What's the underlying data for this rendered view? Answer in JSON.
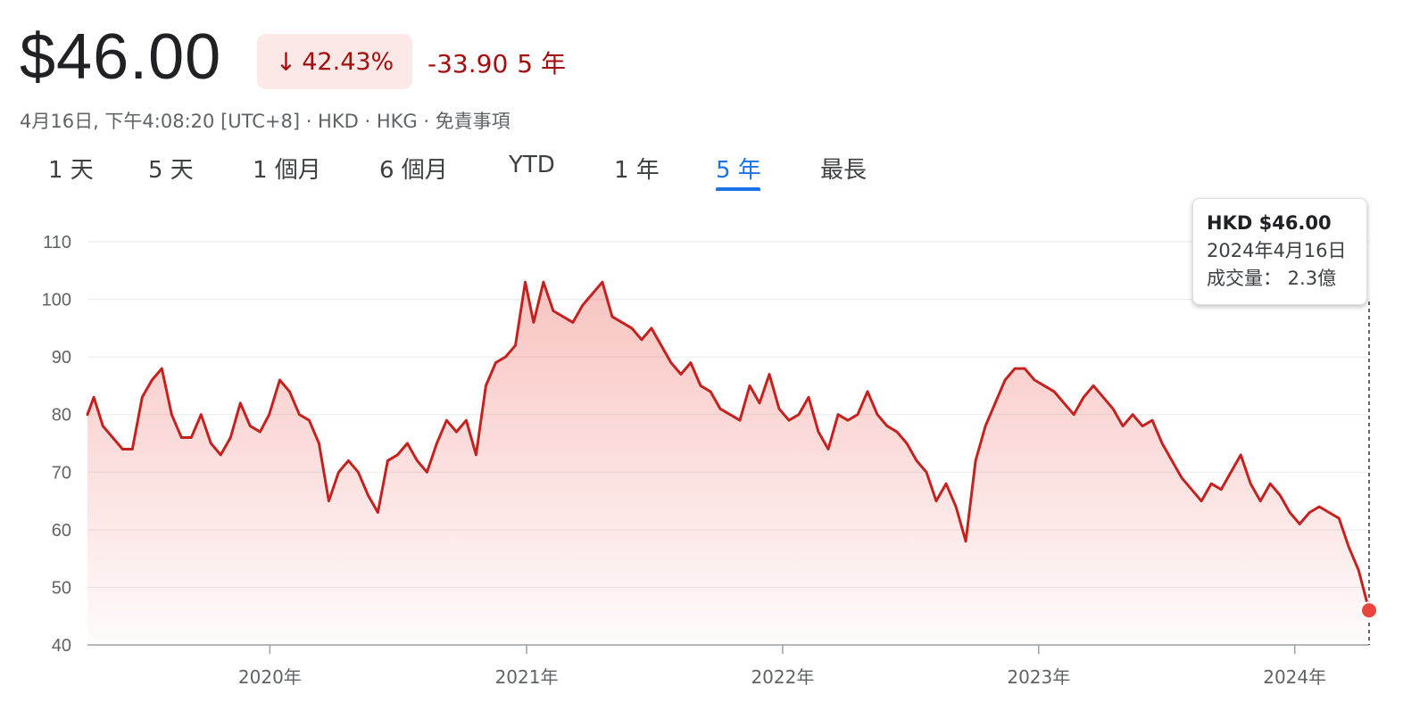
{
  "quote": {
    "price": "$46.00",
    "change_percent": "42.43%",
    "change_abs": "-33.90",
    "period_label": "5 年",
    "meta": "4月16日, 下午4:08:20 [UTC+8] · HKD · HKG · 免責事項"
  },
  "tabs": [
    {
      "label": "1 天"
    },
    {
      "label": "5 天"
    },
    {
      "label": "1 個月"
    },
    {
      "label": "6 個月"
    },
    {
      "label": "YTD"
    },
    {
      "label": "1 年"
    },
    {
      "label": "5 年",
      "active": true
    },
    {
      "label": "最長"
    }
  ],
  "tooltip": {
    "price": "HKD $46.00",
    "date": "2024年4月16日",
    "volume": "成交量： 2.3億"
  },
  "colors": {
    "line": "#c5221f",
    "negative_text": "#a50e0e",
    "negative_bg": "#fce8e6",
    "active_tab": "#1a73e8"
  },
  "icons": {
    "change_arrow": "arrow-down-icon"
  },
  "chart_data": {
    "type": "area",
    "title": "",
    "xlabel": "",
    "ylabel": "",
    "ylim": [
      40,
      110
    ],
    "yticks": [
      40,
      50,
      60,
      70,
      80,
      90,
      100,
      110
    ],
    "xlim": [
      "2019-04-16",
      "2024-04-16"
    ],
    "xticks": [
      {
        "date": "2020-01-01",
        "label": "2020年"
      },
      {
        "date": "2021-01-01",
        "label": "2021年"
      },
      {
        "date": "2022-01-01",
        "label": "2022年"
      },
      {
        "date": "2023-01-01",
        "label": "2023年"
      },
      {
        "date": "2024-01-01",
        "label": "2024年"
      }
    ],
    "grid": true,
    "series": [
      {
        "points": [
          [
            "2019-04-16",
            80
          ],
          [
            "2019-04-25",
            83
          ],
          [
            "2019-05-08",
            78
          ],
          [
            "2019-05-22",
            76
          ],
          [
            "2019-06-05",
            74
          ],
          [
            "2019-06-19",
            74
          ],
          [
            "2019-07-03",
            83
          ],
          [
            "2019-07-17",
            86
          ],
          [
            "2019-07-31",
            88
          ],
          [
            "2019-08-14",
            80
          ],
          [
            "2019-08-28",
            76
          ],
          [
            "2019-09-11",
            76
          ],
          [
            "2019-09-25",
            80
          ],
          [
            "2019-10-09",
            75
          ],
          [
            "2019-10-23",
            73
          ],
          [
            "2019-11-06",
            76
          ],
          [
            "2019-11-20",
            82
          ],
          [
            "2019-12-04",
            78
          ],
          [
            "2019-12-18",
            77
          ],
          [
            "2019-12-31",
            80
          ],
          [
            "2020-01-15",
            86
          ],
          [
            "2020-01-29",
            84
          ],
          [
            "2020-02-12",
            80
          ],
          [
            "2020-02-26",
            79
          ],
          [
            "2020-03-11",
            75
          ],
          [
            "2020-03-25",
            65
          ],
          [
            "2020-04-08",
            70
          ],
          [
            "2020-04-22",
            72
          ],
          [
            "2020-05-06",
            70
          ],
          [
            "2020-05-20",
            66
          ],
          [
            "2020-06-03",
            63
          ],
          [
            "2020-06-17",
            72
          ],
          [
            "2020-07-01",
            73
          ],
          [
            "2020-07-15",
            75
          ],
          [
            "2020-07-29",
            72
          ],
          [
            "2020-08-12",
            70
          ],
          [
            "2020-08-26",
            75
          ],
          [
            "2020-09-09",
            79
          ],
          [
            "2020-09-23",
            77
          ],
          [
            "2020-10-07",
            79
          ],
          [
            "2020-10-21",
            73
          ],
          [
            "2020-11-04",
            85
          ],
          [
            "2020-11-18",
            89
          ],
          [
            "2020-12-02",
            90
          ],
          [
            "2020-12-16",
            92
          ],
          [
            "2020-12-30",
            103
          ],
          [
            "2021-01-11",
            96
          ],
          [
            "2021-01-25",
            103
          ],
          [
            "2021-02-08",
            98
          ],
          [
            "2021-02-22",
            97
          ],
          [
            "2021-03-08",
            96
          ],
          [
            "2021-03-22",
            99
          ],
          [
            "2021-04-05",
            101
          ],
          [
            "2021-04-19",
            103
          ],
          [
            "2021-05-03",
            97
          ],
          [
            "2021-05-17",
            96
          ],
          [
            "2021-05-31",
            95
          ],
          [
            "2021-06-14",
            93
          ],
          [
            "2021-06-28",
            95
          ],
          [
            "2021-07-12",
            92
          ],
          [
            "2021-07-26",
            89
          ],
          [
            "2021-08-09",
            87
          ],
          [
            "2021-08-23",
            89
          ],
          [
            "2021-09-06",
            85
          ],
          [
            "2021-09-20",
            84
          ],
          [
            "2021-10-04",
            81
          ],
          [
            "2021-10-18",
            80
          ],
          [
            "2021-11-01",
            79
          ],
          [
            "2021-11-15",
            85
          ],
          [
            "2021-11-29",
            82
          ],
          [
            "2021-12-13",
            87
          ],
          [
            "2021-12-27",
            81
          ],
          [
            "2022-01-10",
            79
          ],
          [
            "2022-01-24",
            80
          ],
          [
            "2022-02-07",
            83
          ],
          [
            "2022-02-21",
            77
          ],
          [
            "2022-03-07",
            74
          ],
          [
            "2022-03-21",
            80
          ],
          [
            "2022-04-04",
            79
          ],
          [
            "2022-04-18",
            80
          ],
          [
            "2022-05-02",
            84
          ],
          [
            "2022-05-16",
            80
          ],
          [
            "2022-05-30",
            78
          ],
          [
            "2022-06-13",
            77
          ],
          [
            "2022-06-27",
            75
          ],
          [
            "2022-07-11",
            72
          ],
          [
            "2022-07-25",
            70
          ],
          [
            "2022-08-08",
            65
          ],
          [
            "2022-08-22",
            68
          ],
          [
            "2022-09-05",
            64
          ],
          [
            "2022-09-19",
            58
          ],
          [
            "2022-10-03",
            72
          ],
          [
            "2022-10-17",
            78
          ],
          [
            "2022-10-31",
            82
          ],
          [
            "2022-11-14",
            86
          ],
          [
            "2022-11-28",
            88
          ],
          [
            "2022-12-12",
            88
          ],
          [
            "2022-12-26",
            86
          ],
          [
            "2023-01-09",
            85
          ],
          [
            "2023-01-23",
            84
          ],
          [
            "2023-02-06",
            82
          ],
          [
            "2023-02-20",
            80
          ],
          [
            "2023-03-06",
            83
          ],
          [
            "2023-03-20",
            85
          ],
          [
            "2023-04-03",
            83
          ],
          [
            "2023-04-17",
            81
          ],
          [
            "2023-05-01",
            78
          ],
          [
            "2023-05-15",
            80
          ],
          [
            "2023-05-29",
            78
          ],
          [
            "2023-06-12",
            79
          ],
          [
            "2023-06-26",
            75
          ],
          [
            "2023-07-10",
            72
          ],
          [
            "2023-07-24",
            69
          ],
          [
            "2023-08-07",
            67
          ],
          [
            "2023-08-21",
            65
          ],
          [
            "2023-09-04",
            68
          ],
          [
            "2023-09-18",
            67
          ],
          [
            "2023-10-02",
            70
          ],
          [
            "2023-10-16",
            73
          ],
          [
            "2023-10-30",
            68
          ],
          [
            "2023-11-13",
            65
          ],
          [
            "2023-11-27",
            68
          ],
          [
            "2023-12-11",
            66
          ],
          [
            "2023-12-25",
            63
          ],
          [
            "2024-01-08",
            61
          ],
          [
            "2024-01-22",
            63
          ],
          [
            "2024-02-05",
            64
          ],
          [
            "2024-02-19",
            63
          ],
          [
            "2024-03-04",
            62
          ],
          [
            "2024-03-18",
            57
          ],
          [
            "2024-04-01",
            53
          ],
          [
            "2024-04-16",
            46
          ]
        ]
      }
    ]
  }
}
